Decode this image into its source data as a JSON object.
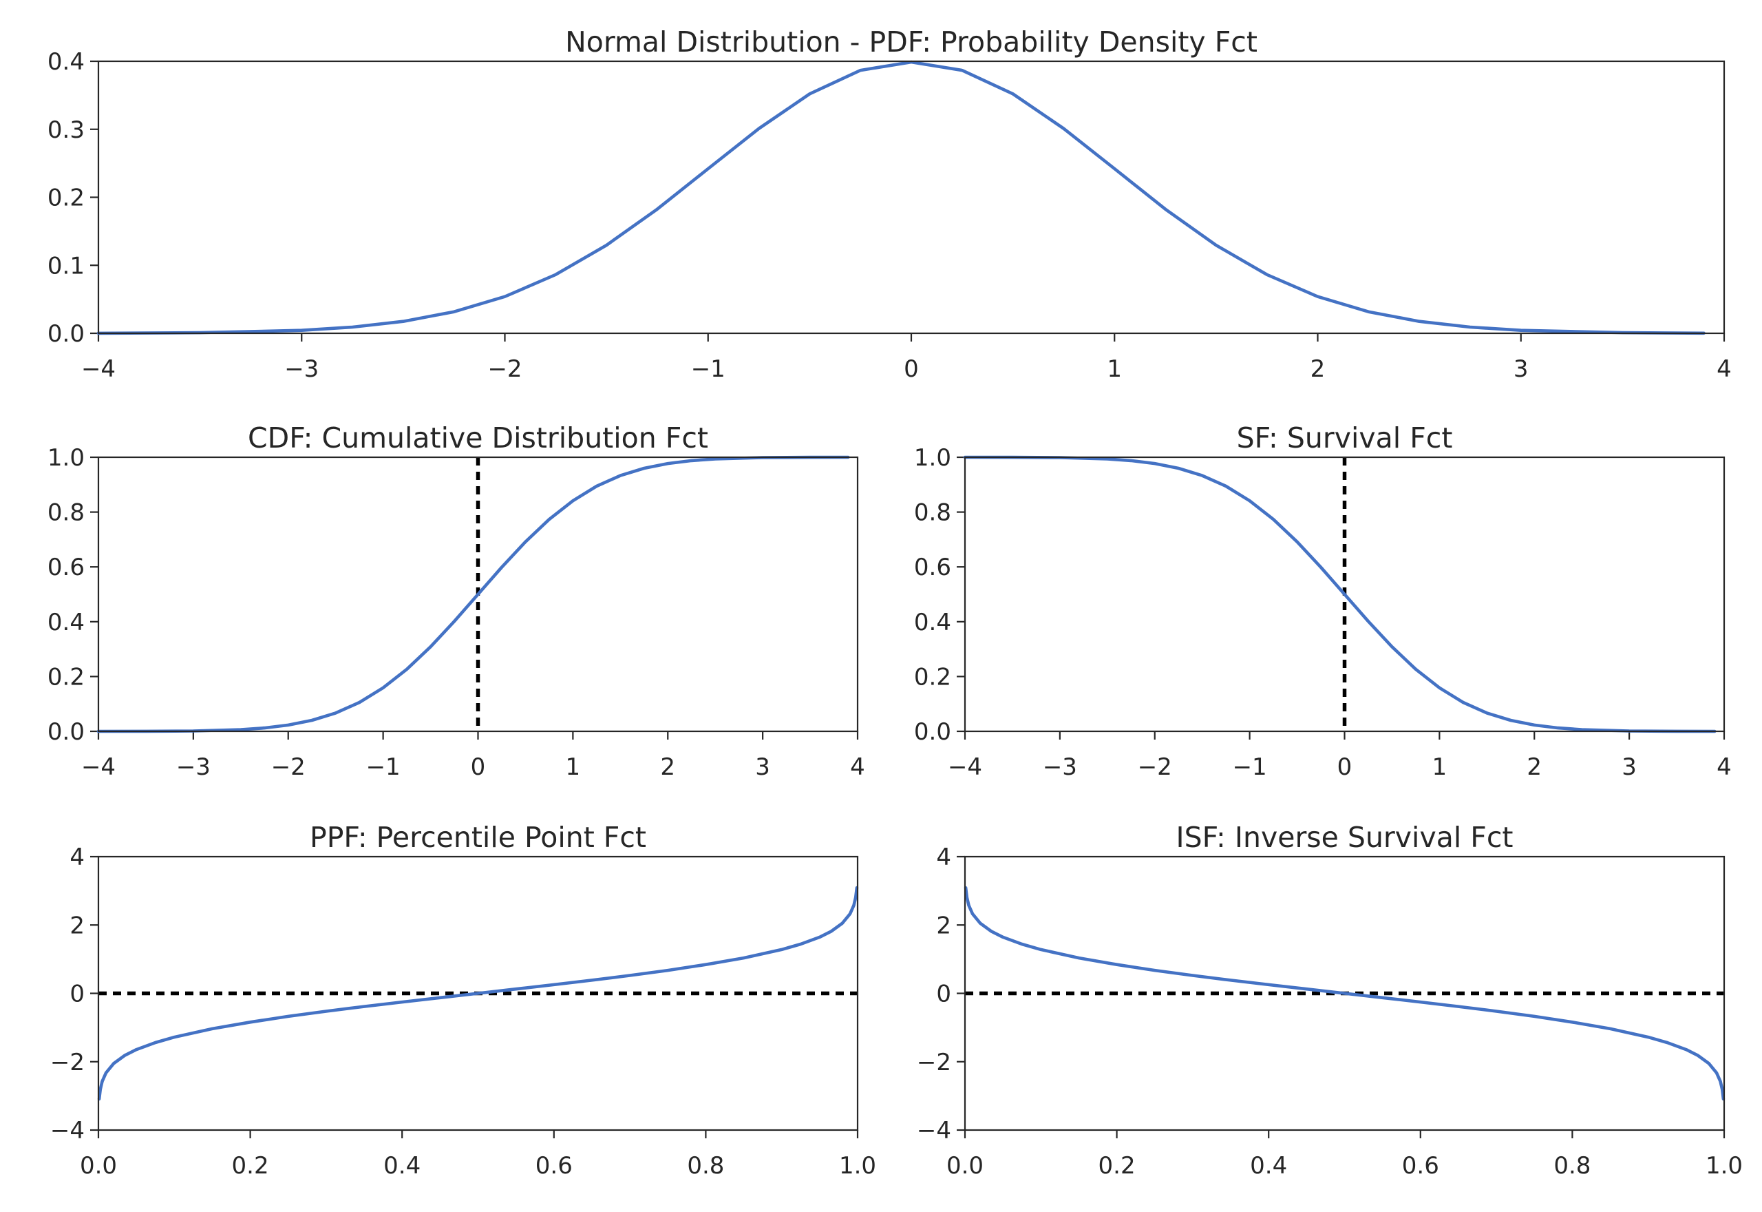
{
  "figure": {
    "line_color": "#4472C4",
    "reference_line_color": "#000000",
    "background": "#ffffff"
  },
  "chart_data": [
    {
      "id": "pdf",
      "type": "line",
      "title": "Normal Distribution - PDF: Probability Density Fct",
      "xlabel": "",
      "ylabel": "",
      "xlim": [
        -4,
        4
      ],
      "ylim": [
        0,
        0.4
      ],
      "xticks": [
        -4,
        -3,
        -2,
        -1,
        0,
        1,
        2,
        3,
        4
      ],
      "xtick_labels": [
        "−4",
        "−3",
        "−2",
        "−1",
        "0",
        "1",
        "2",
        "3",
        "4"
      ],
      "yticks": [
        0,
        0.1,
        0.2,
        0.3,
        0.4
      ],
      "ytick_labels": [
        "0.0",
        "0.1",
        "0.2",
        "0.3",
        "0.4"
      ],
      "series": [
        {
          "x": [
            -4,
            -3.5,
            -3,
            -2.75,
            -2.5,
            -2.25,
            -2,
            -1.75,
            -1.5,
            -1.25,
            -1,
            -0.75,
            -0.5,
            -0.25,
            0,
            0.25,
            0.5,
            0.75,
            1,
            1.25,
            1.5,
            1.75,
            2,
            2.25,
            2.5,
            2.75,
            3,
            3.5,
            3.9
          ],
          "y": [
            0.0001,
            0.0009,
            0.0044,
            0.0091,
            0.0175,
            0.0317,
            0.054,
            0.0863,
            0.1295,
            0.1826,
            0.242,
            0.3011,
            0.3521,
            0.3867,
            0.3989,
            0.3867,
            0.3521,
            0.3011,
            0.242,
            0.1826,
            0.1295,
            0.0863,
            0.054,
            0.0317,
            0.0175,
            0.0091,
            0.0044,
            0.0009,
            0.0002
          ]
        }
      ]
    },
    {
      "id": "cdf",
      "type": "line",
      "title": "CDF: Cumulative Distribution Fct",
      "xlabel": "",
      "ylabel": "",
      "xlim": [
        -4,
        4
      ],
      "ylim": [
        0,
        1
      ],
      "xticks": [
        -4,
        -3,
        -2,
        -1,
        0,
        1,
        2,
        3,
        4
      ],
      "xtick_labels": [
        "−4",
        "−3",
        "−2",
        "−1",
        "0",
        "1",
        "2",
        "3",
        "4"
      ],
      "yticks": [
        0,
        0.2,
        0.4,
        0.6,
        0.8,
        1
      ],
      "ytick_labels": [
        "0.0",
        "0.2",
        "0.4",
        "0.6",
        "0.8",
        "1.0"
      ],
      "reference_line": {
        "orientation": "vertical",
        "x": 0
      },
      "series": [
        {
          "x": [
            -4,
            -3.5,
            -3,
            -2.5,
            -2.25,
            -2,
            -1.75,
            -1.5,
            -1.25,
            -1,
            -0.75,
            -0.5,
            -0.25,
            0,
            0.25,
            0.5,
            0.75,
            1,
            1.25,
            1.5,
            1.75,
            2,
            2.25,
            2.5,
            3,
            3.5,
            3.9
          ],
          "y": [
            0,
            0.0002,
            0.0013,
            0.0062,
            0.0122,
            0.0228,
            0.0401,
            0.0668,
            0.1056,
            0.1587,
            0.2266,
            0.3085,
            0.4013,
            0.5,
            0.5987,
            0.6915,
            0.7734,
            0.8413,
            0.8944,
            0.9332,
            0.9599,
            0.9772,
            0.9878,
            0.9938,
            0.9987,
            0.9998,
            1.0
          ]
        }
      ]
    },
    {
      "id": "sf",
      "type": "line",
      "title": "SF: Survival Fct",
      "xlabel": "",
      "ylabel": "",
      "xlim": [
        -4,
        4
      ],
      "ylim": [
        0,
        1
      ],
      "xticks": [
        -4,
        -3,
        -2,
        -1,
        0,
        1,
        2,
        3,
        4
      ],
      "xtick_labels": [
        "−4",
        "−3",
        "−2",
        "−1",
        "0",
        "1",
        "2",
        "3",
        "4"
      ],
      "yticks": [
        0,
        0.2,
        0.4,
        0.6,
        0.8,
        1
      ],
      "ytick_labels": [
        "0.0",
        "0.2",
        "0.4",
        "0.6",
        "0.8",
        "1.0"
      ],
      "reference_line": {
        "orientation": "vertical",
        "x": 0
      },
      "series": [
        {
          "x": [
            -4,
            -3.5,
            -3,
            -2.5,
            -2.25,
            -2,
            -1.75,
            -1.5,
            -1.25,
            -1,
            -0.75,
            -0.5,
            -0.25,
            0,
            0.25,
            0.5,
            0.75,
            1,
            1.25,
            1.5,
            1.75,
            2,
            2.25,
            2.5,
            3,
            3.5,
            3.9
          ],
          "y": [
            1.0,
            0.9998,
            0.9987,
            0.9938,
            0.9878,
            0.9772,
            0.9599,
            0.9332,
            0.8944,
            0.8413,
            0.7734,
            0.6915,
            0.5987,
            0.5,
            0.4013,
            0.3085,
            0.2266,
            0.1587,
            0.1056,
            0.0668,
            0.0401,
            0.0228,
            0.0122,
            0.0062,
            0.0013,
            0.0002,
            0
          ]
        }
      ]
    },
    {
      "id": "ppf",
      "type": "line",
      "title": "PPF: Percentile Point Fct",
      "xlabel": "",
      "ylabel": "",
      "xlim": [
        0,
        1
      ],
      "ylim": [
        -4,
        4
      ],
      "xticks": [
        0,
        0.2,
        0.4,
        0.6,
        0.8,
        1
      ],
      "xtick_labels": [
        "0.0",
        "0.2",
        "0.4",
        "0.6",
        "0.8",
        "1.0"
      ],
      "yticks": [
        -4,
        -2,
        0,
        2,
        4
      ],
      "ytick_labels": [
        "−4",
        "−2",
        "0",
        "2",
        "4"
      ],
      "reference_line": {
        "orientation": "horizontal",
        "y": 0
      },
      "series": [
        {
          "x": [
            0.001,
            0.0025,
            0.005,
            0.01,
            0.02,
            0.035,
            0.05,
            0.075,
            0.1,
            0.15,
            0.2,
            0.25,
            0.3,
            0.35,
            0.4,
            0.45,
            0.5,
            0.55,
            0.6,
            0.65,
            0.7,
            0.75,
            0.8,
            0.85,
            0.9,
            0.925,
            0.95,
            0.965,
            0.98,
            0.99,
            0.995,
            0.9975,
            0.999
          ],
          "y": [
            -3.09,
            -2.81,
            -2.576,
            -2.326,
            -2.054,
            -1.812,
            -1.645,
            -1.44,
            -1.282,
            -1.036,
            -0.842,
            -0.674,
            -0.524,
            -0.385,
            -0.253,
            -0.126,
            0,
            0.126,
            0.253,
            0.385,
            0.524,
            0.674,
            0.842,
            1.036,
            1.282,
            1.44,
            1.645,
            1.812,
            2.054,
            2.326,
            2.576,
            2.81,
            3.09
          ]
        }
      ]
    },
    {
      "id": "isf",
      "type": "line",
      "title": "ISF: Inverse Survival Fct",
      "xlabel": "",
      "ylabel": "",
      "xlim": [
        0,
        1
      ],
      "ylim": [
        -4,
        4
      ],
      "xticks": [
        0,
        0.2,
        0.4,
        0.6,
        0.8,
        1
      ],
      "xtick_labels": [
        "0.0",
        "0.2",
        "0.4",
        "0.6",
        "0.8",
        "1.0"
      ],
      "yticks": [
        -4,
        -2,
        0,
        2,
        4
      ],
      "ytick_labels": [
        "−4",
        "−2",
        "0",
        "2",
        "4"
      ],
      "reference_line": {
        "orientation": "horizontal",
        "y": 0
      },
      "series": [
        {
          "x": [
            0.001,
            0.0025,
            0.005,
            0.01,
            0.02,
            0.035,
            0.05,
            0.075,
            0.1,
            0.15,
            0.2,
            0.25,
            0.3,
            0.35,
            0.4,
            0.45,
            0.5,
            0.55,
            0.6,
            0.65,
            0.7,
            0.75,
            0.8,
            0.85,
            0.9,
            0.925,
            0.95,
            0.965,
            0.98,
            0.99,
            0.995,
            0.9975,
            0.999
          ],
          "y": [
            3.09,
            2.81,
            2.576,
            2.326,
            2.054,
            1.812,
            1.645,
            1.44,
            1.282,
            1.036,
            0.842,
            0.674,
            0.524,
            0.385,
            0.253,
            0.126,
            0,
            -0.126,
            -0.253,
            -0.385,
            -0.524,
            -0.674,
            -0.842,
            -1.036,
            -1.282,
            -1.44,
            -1.645,
            -1.812,
            -2.054,
            -2.326,
            -2.576,
            -2.81,
            -3.09
          ]
        }
      ]
    }
  ]
}
